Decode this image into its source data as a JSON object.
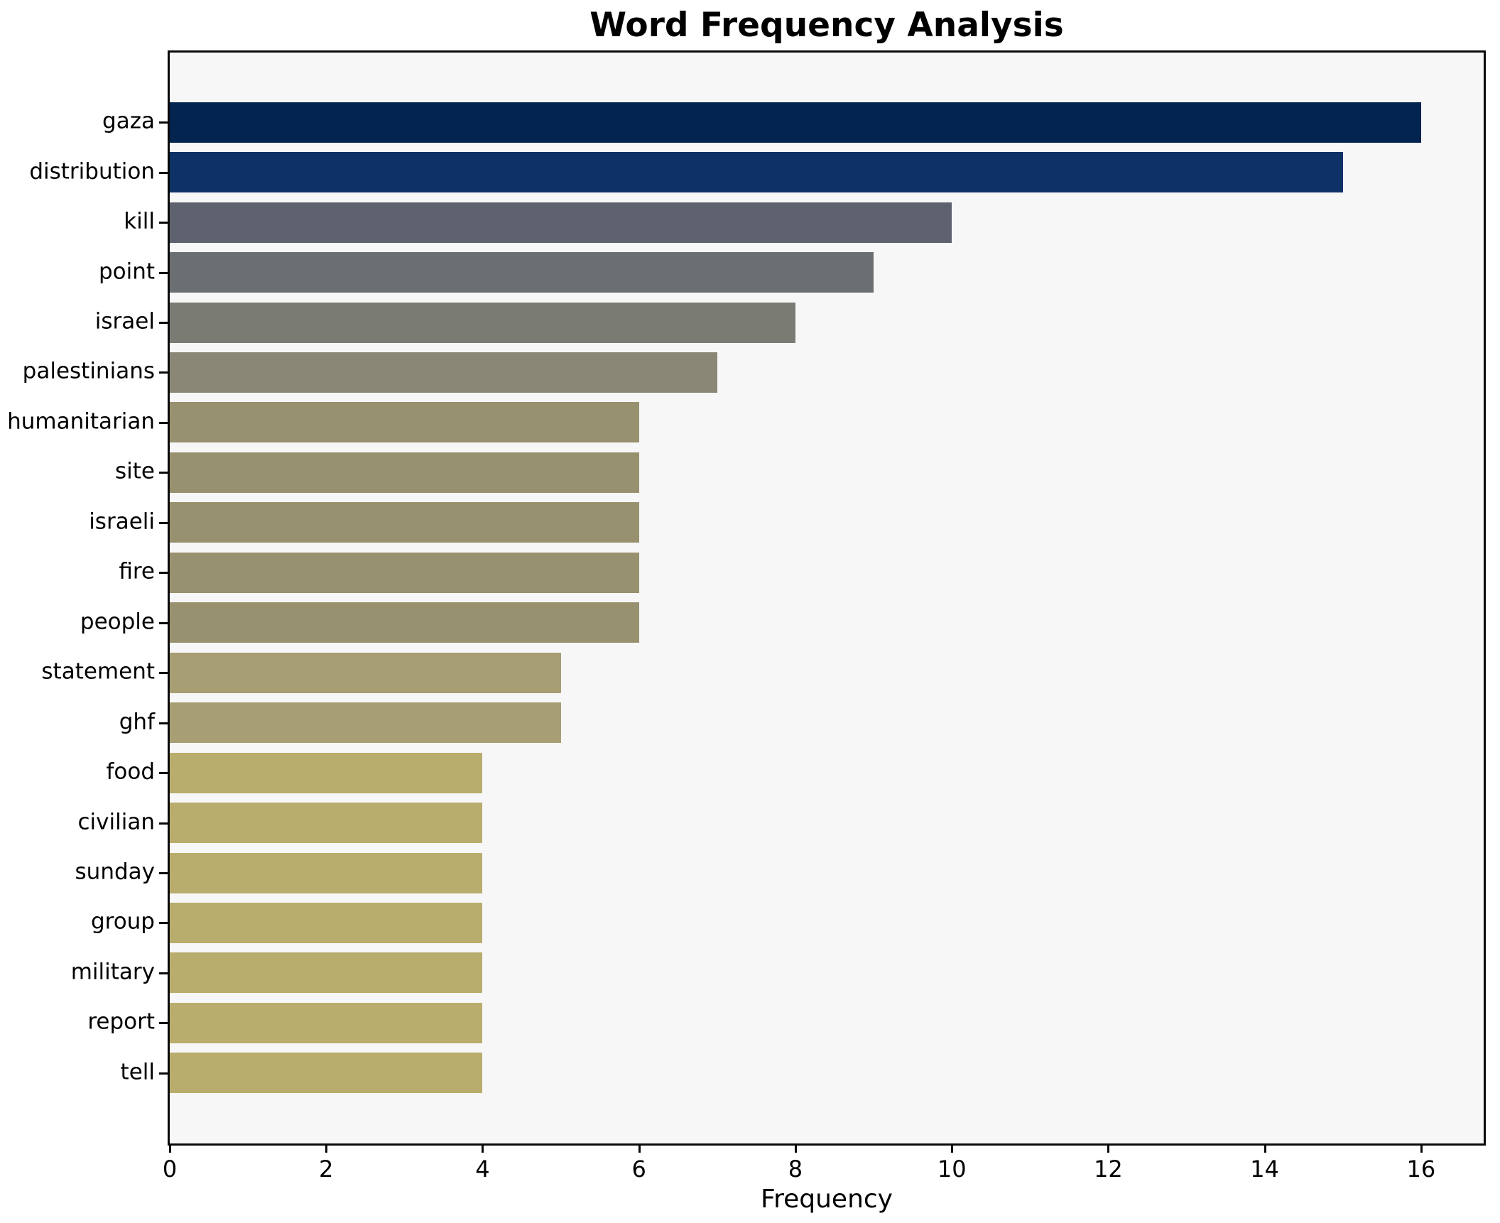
{
  "title": "Word Frequency Analysis",
  "xlabel": "Frequency",
  "plot_background": "#f7f7f8",
  "spine_color": "#0a0a0a",
  "chart_data": {
    "type": "bar",
    "orientation": "horizontal",
    "title": "Word Frequency Analysis",
    "xlabel": "Frequency",
    "ylabel": "",
    "xlim": [
      0,
      16.8
    ],
    "x_ticks": [
      0,
      2,
      4,
      6,
      8,
      10,
      12,
      14,
      16
    ],
    "grid": false,
    "legend": null,
    "categories": [
      "gaza",
      "distribution",
      "kill",
      "point",
      "israel",
      "palestinians",
      "humanitarian",
      "site",
      "israeli",
      "fire",
      "people",
      "statement",
      "ghf",
      "food",
      "civilian",
      "sunday",
      "group",
      "military",
      "report",
      "tell"
    ],
    "values": [
      16,
      15,
      10,
      9,
      8,
      7,
      6,
      6,
      6,
      6,
      6,
      5,
      5,
      4,
      4,
      4,
      4,
      4,
      4,
      4
    ],
    "bar_colors": [
      "#03244f",
      "#0e3166",
      "#5d626e",
      "#6c6f71",
      "#7a7b73",
      "#8a8777",
      "#98916f",
      "#98916f",
      "#98916f",
      "#98916f",
      "#98916f",
      "#a79e74",
      "#a79e74",
      "#b9ad6d",
      "#b9ad6d",
      "#b9ad6d",
      "#b9ad6d",
      "#b9ad6d",
      "#b9ad6d",
      "#b9ad6d"
    ]
  }
}
